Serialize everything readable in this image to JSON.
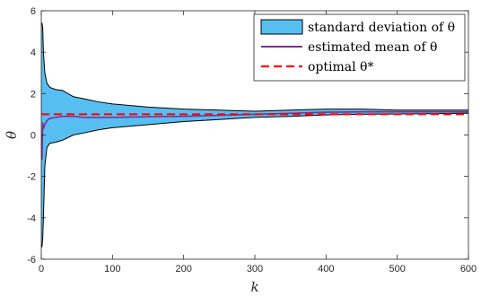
{
  "chart_data": {
    "type": "area",
    "xlabel": "k",
    "ylabel": "θ",
    "xlim": [
      0,
      600
    ],
    "ylim": [
      -6,
      6
    ],
    "xticks": [
      0,
      100,
      200,
      300,
      400,
      500,
      600
    ],
    "yticks": [
      -6,
      -4,
      -2,
      0,
      2,
      4,
      6
    ],
    "grid": false,
    "legend_position": "top-right",
    "legend": [
      "standard deviation of θ",
      "estimated mean of θ",
      "optimal θ*"
    ],
    "colors": {
      "band_fill": "#56bef0",
      "band_edge": "#000000",
      "mean": "#7e2f8e",
      "optimal": "#ff0000"
    },
    "series": [
      {
        "name": "estimated mean of θ",
        "x": [
          0,
          1,
          2,
          3,
          5,
          8,
          12,
          20,
          30,
          45,
          60,
          80,
          100,
          150,
          200,
          250,
          300,
          350,
          400,
          450,
          500,
          550,
          600
        ],
        "values": [
          0.0,
          -1.2,
          0.6,
          0.3,
          0.5,
          0.7,
          0.8,
          0.85,
          0.9,
          0.9,
          0.85,
          0.85,
          0.85,
          0.88,
          0.9,
          0.95,
          1.0,
          1.05,
          1.1,
          1.12,
          1.12,
          1.12,
          1.12
        ]
      },
      {
        "name": "standard deviation of θ",
        "x": [
          0,
          1,
          2,
          3,
          5,
          8,
          12,
          20,
          30,
          45,
          60,
          80,
          100,
          150,
          200,
          250,
          300,
          350,
          400,
          450,
          500,
          550,
          600
        ],
        "upper": [
          5.4,
          5.4,
          5.2,
          4.0,
          3.0,
          2.5,
          2.3,
          2.2,
          2.15,
          1.85,
          1.75,
          1.6,
          1.5,
          1.35,
          1.25,
          1.2,
          1.15,
          1.2,
          1.25,
          1.25,
          1.2,
          1.2,
          1.2
        ],
        "lower": [
          -5.4,
          -5.4,
          -5.0,
          -4.0,
          -1.5,
          -0.6,
          -0.4,
          -0.35,
          -0.25,
          0.0,
          0.1,
          0.25,
          0.35,
          0.5,
          0.65,
          0.75,
          0.85,
          0.9,
          0.97,
          1.0,
          1.02,
          1.03,
          1.05
        ]
      },
      {
        "name": "optimal θ*",
        "x": [
          0,
          600
        ],
        "values": [
          1.0,
          1.0
        ]
      }
    ]
  }
}
